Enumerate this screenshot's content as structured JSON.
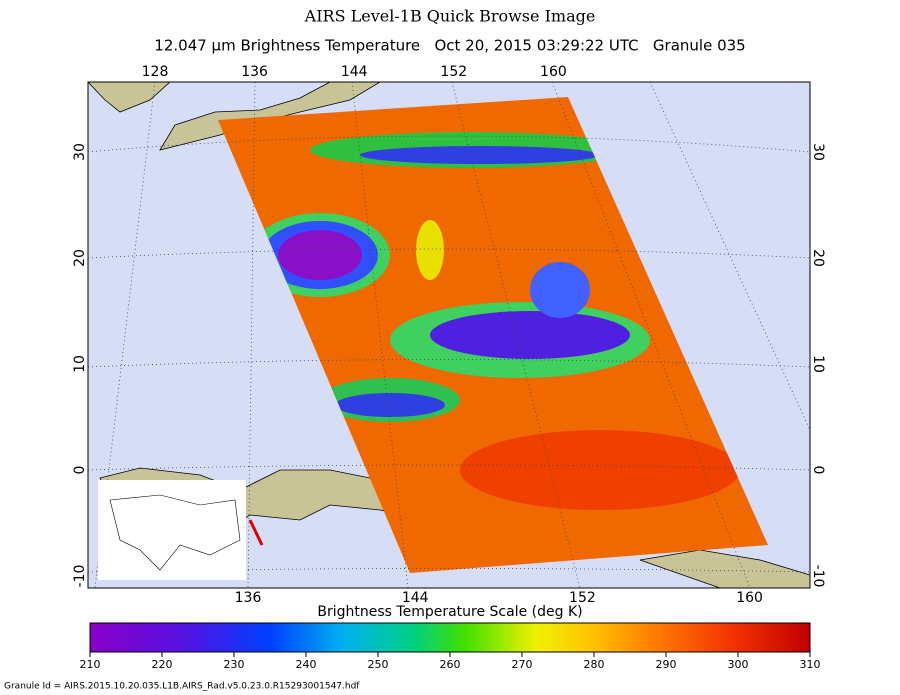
{
  "header": {
    "title": "AIRS Level-1B Quick Browse Image",
    "subtitle": "12.047 μm Brightness Temperature   Oct 20, 2015 03:29:22 UTC   Granule 035"
  },
  "map": {
    "top_lon_labels": [
      128,
      136,
      144,
      152,
      160
    ],
    "bottom_lon_labels": [
      136,
      144,
      152,
      160
    ],
    "left_lat_labels": [
      30,
      20,
      10,
      0,
      -10
    ],
    "right_lat_labels": [
      30,
      20,
      10,
      0,
      -10
    ]
  },
  "colorbar": {
    "title": "Brightness Temperature Scale (deg K)",
    "range": [
      210,
      310
    ],
    "ticks": [
      210,
      220,
      230,
      240,
      250,
      260,
      270,
      280,
      290,
      300,
      310
    ]
  },
  "footer": {
    "granule_id": "Granule Id = AIRS.2015.10.20.035.L1B.AIRS_Rad.v5.0.23.0.R15293001547.hdf"
  }
}
